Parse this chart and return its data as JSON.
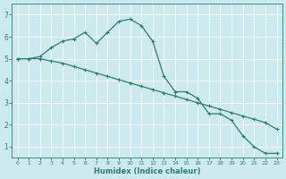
{
  "xlabel": "Humidex (Indice chaleur)",
  "background_color": "#cce9ed",
  "grid_color": "#ffffff",
  "line_color": "#2e7d6e",
  "xlim": [
    -0.5,
    23.5
  ],
  "ylim": [
    0.5,
    7.5
  ],
  "yticks": [
    1,
    2,
    3,
    4,
    5,
    6,
    7
  ],
  "xticks": [
    0,
    1,
    2,
    3,
    4,
    5,
    6,
    7,
    8,
    9,
    10,
    11,
    12,
    13,
    14,
    15,
    16,
    17,
    18,
    19,
    20,
    21,
    22,
    23
  ],
  "series1_x": [
    0,
    1,
    2,
    3,
    4,
    5,
    6,
    7,
    8,
    9,
    10,
    11,
    12,
    13,
    14,
    15,
    16,
    17,
    18,
    19,
    20,
    21,
    22,
    23
  ],
  "series1_y": [
    5.0,
    5.0,
    5.1,
    5.5,
    5.8,
    5.9,
    6.2,
    5.7,
    6.2,
    6.7,
    6.8,
    6.5,
    5.8,
    4.2,
    3.5,
    3.5,
    3.2,
    2.5,
    2.5,
    2.2,
    1.5,
    1.0,
    0.7,
    0.7
  ],
  "series2_x": [
    0,
    1,
    2,
    3,
    4,
    5,
    6,
    7,
    8,
    9,
    10,
    11,
    12,
    13,
    14,
    15,
    16,
    17,
    18,
    19,
    20,
    21,
    22,
    23
  ],
  "series2_y": [
    5.0,
    5.0,
    5.0,
    4.9,
    4.8,
    4.65,
    4.5,
    4.35,
    4.2,
    4.05,
    3.9,
    3.75,
    3.6,
    3.45,
    3.3,
    3.15,
    3.0,
    2.85,
    2.7,
    2.55,
    2.4,
    2.25,
    2.1,
    1.8
  ],
  "marker": "+",
  "markersize": 3,
  "linewidth": 0.9
}
